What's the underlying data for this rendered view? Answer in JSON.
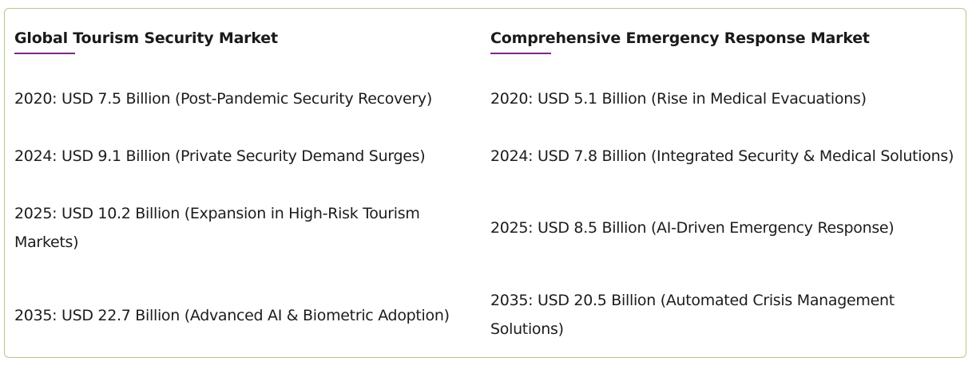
{
  "left": {
    "title": "Global Tourism Security Market",
    "entries": [
      "2020: USD 7.5 Billion (Post-Pandemic Security Recovery)",
      "2024: USD 9.1 Billion (Private Security Demand Surges)",
      "2025: USD 10.2 Billion (Expansion in High-Risk Tourism Markets)",
      "2035: USD 22.7 Billion (Advanced AI & Biometric Adoption)"
    ]
  },
  "right": {
    "title": "Comprehensive Emergency Response Market",
    "entries": [
      "2020: USD 5.1 Billion (Rise in Medical Evacuations)",
      "2024: USD 7.8 Billion (Integrated Security & Medical Solutions)",
      "2025: USD 8.5 Billion (AI-Driven Emergency Response)",
      "2035: USD 20.5 Billion (Automated Crisis Management Solutions)"
    ]
  },
  "colors": {
    "border": "#b5c98a",
    "accent_underline": "#7b2a86",
    "text": "#1c1c1c"
  }
}
